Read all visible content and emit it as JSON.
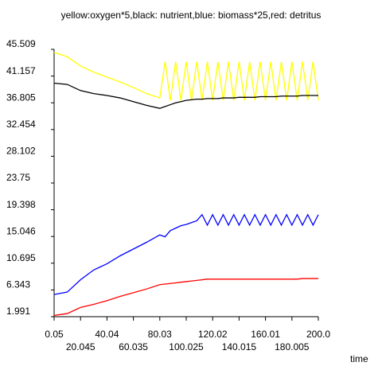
{
  "chart_data": {
    "type": "line",
    "title": "yellow:oxygen*5,black: nutrient,blue: biomass*25,red: detritus",
    "x_label": "time",
    "x": [
      0.05,
      10,
      20,
      30,
      40,
      50,
      60,
      70,
      80,
      84,
      88,
      92,
      96,
      100,
      104,
      108,
      112,
      116,
      120,
      124,
      128,
      132,
      136,
      140,
      144,
      148,
      152,
      156,
      160,
      164,
      168,
      172,
      176,
      180,
      184,
      188,
      192,
      196,
      200
    ],
    "series": [
      {
        "name": "oxygen*5",
        "color": "#ffff00",
        "values": [
          45.0,
          44.3,
          42.8,
          41.8,
          41.0,
          40.2,
          39.3,
          38.3,
          37.6,
          43.5,
          37.2,
          43.5,
          37.2,
          43.5,
          37.2,
          43.5,
          37.2,
          43.5,
          37.2,
          43.5,
          37.2,
          43.5,
          37.2,
          43.5,
          37.2,
          43.5,
          37.2,
          43.5,
          37.2,
          43.5,
          37.2,
          43.5,
          37.2,
          43.5,
          37.2,
          43.5,
          37.2,
          43.5,
          37.2
        ]
      },
      {
        "name": "nutrient",
        "color": "#000000",
        "values": [
          40.0,
          39.8,
          38.8,
          38.3,
          38.0,
          37.6,
          37.0,
          36.4,
          35.9,
          36.2,
          36.5,
          36.8,
          37.0,
          37.2,
          37.3,
          37.4,
          37.4,
          37.5,
          37.5,
          37.5,
          37.6,
          37.6,
          37.6,
          37.7,
          37.7,
          37.7,
          37.7,
          37.8,
          37.8,
          37.8,
          37.8,
          37.9,
          37.9,
          37.9,
          37.9,
          38.0,
          38.0,
          38.0,
          38.0
        ]
      },
      {
        "name": "biomass*25",
        "color": "#0000ff",
        "values": [
          5.6,
          6.0,
          8.0,
          9.6,
          10.6,
          11.9,
          13.0,
          14.1,
          15.3,
          15.0,
          16.0,
          16.4,
          16.8,
          17.0,
          17.3,
          17.6,
          18.6,
          16.9,
          18.6,
          16.9,
          18.6,
          16.9,
          18.6,
          16.9,
          18.6,
          16.9,
          18.6,
          16.9,
          18.6,
          16.9,
          18.6,
          16.9,
          18.6,
          16.9,
          18.6,
          16.9,
          18.6,
          16.9,
          18.6
        ]
      },
      {
        "name": "detritus",
        "color": "#ff0000",
        "values": [
          2.2,
          2.5,
          3.5,
          4.0,
          4.6,
          5.3,
          5.9,
          6.5,
          7.2,
          7.3,
          7.4,
          7.5,
          7.6,
          7.7,
          7.8,
          7.9,
          8.0,
          8.1,
          8.1,
          8.1,
          8.1,
          8.1,
          8.1,
          8.1,
          8.1,
          8.1,
          8.1,
          8.1,
          8.1,
          8.1,
          8.1,
          8.1,
          8.1,
          8.1,
          8.1,
          8.2,
          8.2,
          8.2,
          8.2
        ]
      }
    ],
    "xlim": [
      0.05,
      200
    ],
    "xticks": [
      0.05,
      20.045,
      40.04,
      60.035,
      80.03,
      100.025,
      120.02,
      140.015,
      160.01,
      180.005,
      {
        "value": 200,
        "label": "200.0"
      }
    ],
    "ylim": [
      1.991,
      45.509
    ],
    "yticks": [
      1.991,
      6.343,
      10.695,
      15.046,
      19.398,
      23.75,
      28.102,
      32.454,
      36.805,
      41.157,
      45.509
    ]
  }
}
